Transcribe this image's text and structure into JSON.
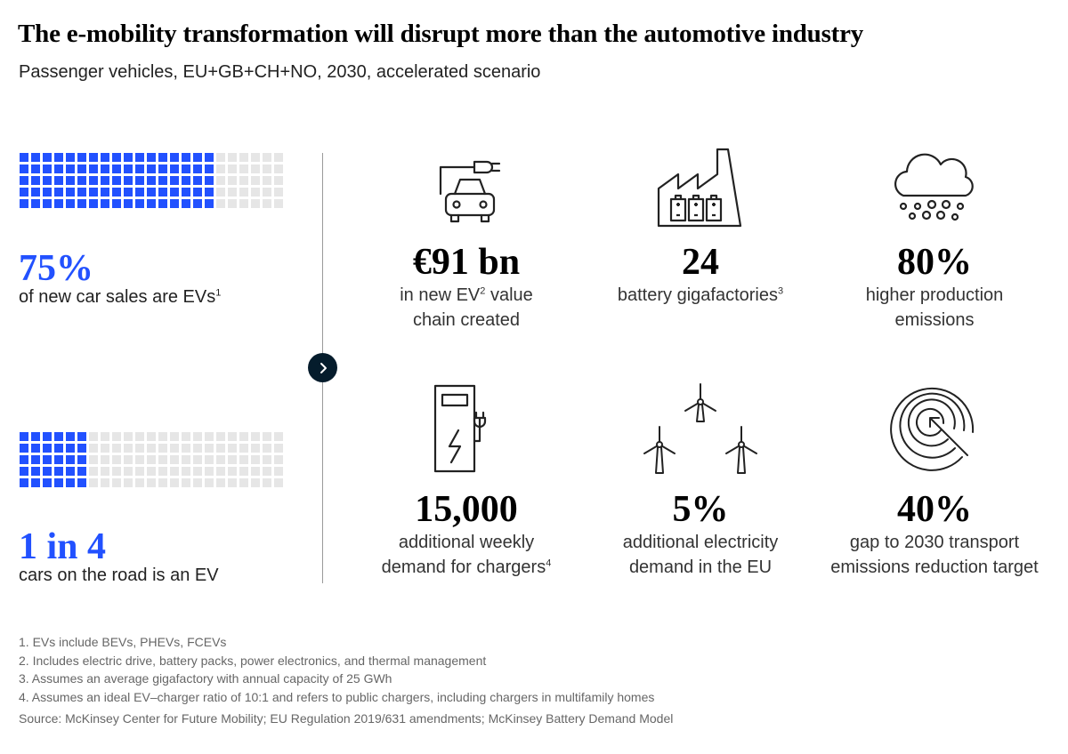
{
  "title": "The e-mobility transformation will disrupt more than the automotive industry",
  "subtitle": "Passenger vehicles, EU+GB+CH+NO, 2030, accelerated scenario",
  "colors": {
    "ev_blue": "#2251ff",
    "grey_cell": "#e6e6e6",
    "arrow_bg": "#051c2c"
  },
  "left": {
    "sales": {
      "value": "75%",
      "text": "of new car sales are EVs",
      "sup": "1",
      "share": 0.75
    },
    "road": {
      "value": "1 in 4",
      "text": "cars on the road is an EV",
      "share": 0.25
    }
  },
  "stats": [
    {
      "icon": "ev-charging-car-icon",
      "value": "€91 bn",
      "line1": "in new EV",
      "sup1": "2",
      "line1_tail": " value",
      "line2": "chain created",
      "sup2": ""
    },
    {
      "icon": "battery-factory-icon",
      "value": "24",
      "line1": "battery gigafactories",
      "sup1": "3",
      "line1_tail": "",
      "line2": "",
      "sup2": ""
    },
    {
      "icon": "emission-cloud-icon",
      "value": "80%",
      "line1": "higher production",
      "sup1": "",
      "line1_tail": "",
      "line2": "emissions",
      "sup2": ""
    },
    {
      "icon": "charging-station-icon",
      "value": "15,000",
      "line1": "additional weekly",
      "sup1": "",
      "line1_tail": "",
      "line2": "demand for chargers",
      "sup2": "4"
    },
    {
      "icon": "wind-turbines-icon",
      "value": "5%",
      "line1": "additional electricity",
      "sup1": "",
      "line1_tail": "",
      "line2": "demand in the EU",
      "sup2": ""
    },
    {
      "icon": "target-icon",
      "value": "40%",
      "line1": "gap to 2030 transport",
      "sup1": "",
      "line1_tail": "",
      "line2": "emissions reduction target",
      "sup2": ""
    }
  ],
  "footnotes": [
    "1. EVs include BEVs, PHEVs, FCEVs",
    "2. Includes electric drive, battery packs, power electronics, and thermal management",
    "3. Assumes an average gigafactory with annual capacity of 25 GWh",
    "4. Assumes an ideal EV–charger ratio of 10:1 and refers to public chargers, including chargers in multifamily homes"
  ],
  "source": "Source: McKinsey Center for Future Mobility; EU Regulation 2019/631 amendments; McKinsey Battery Demand Model"
}
